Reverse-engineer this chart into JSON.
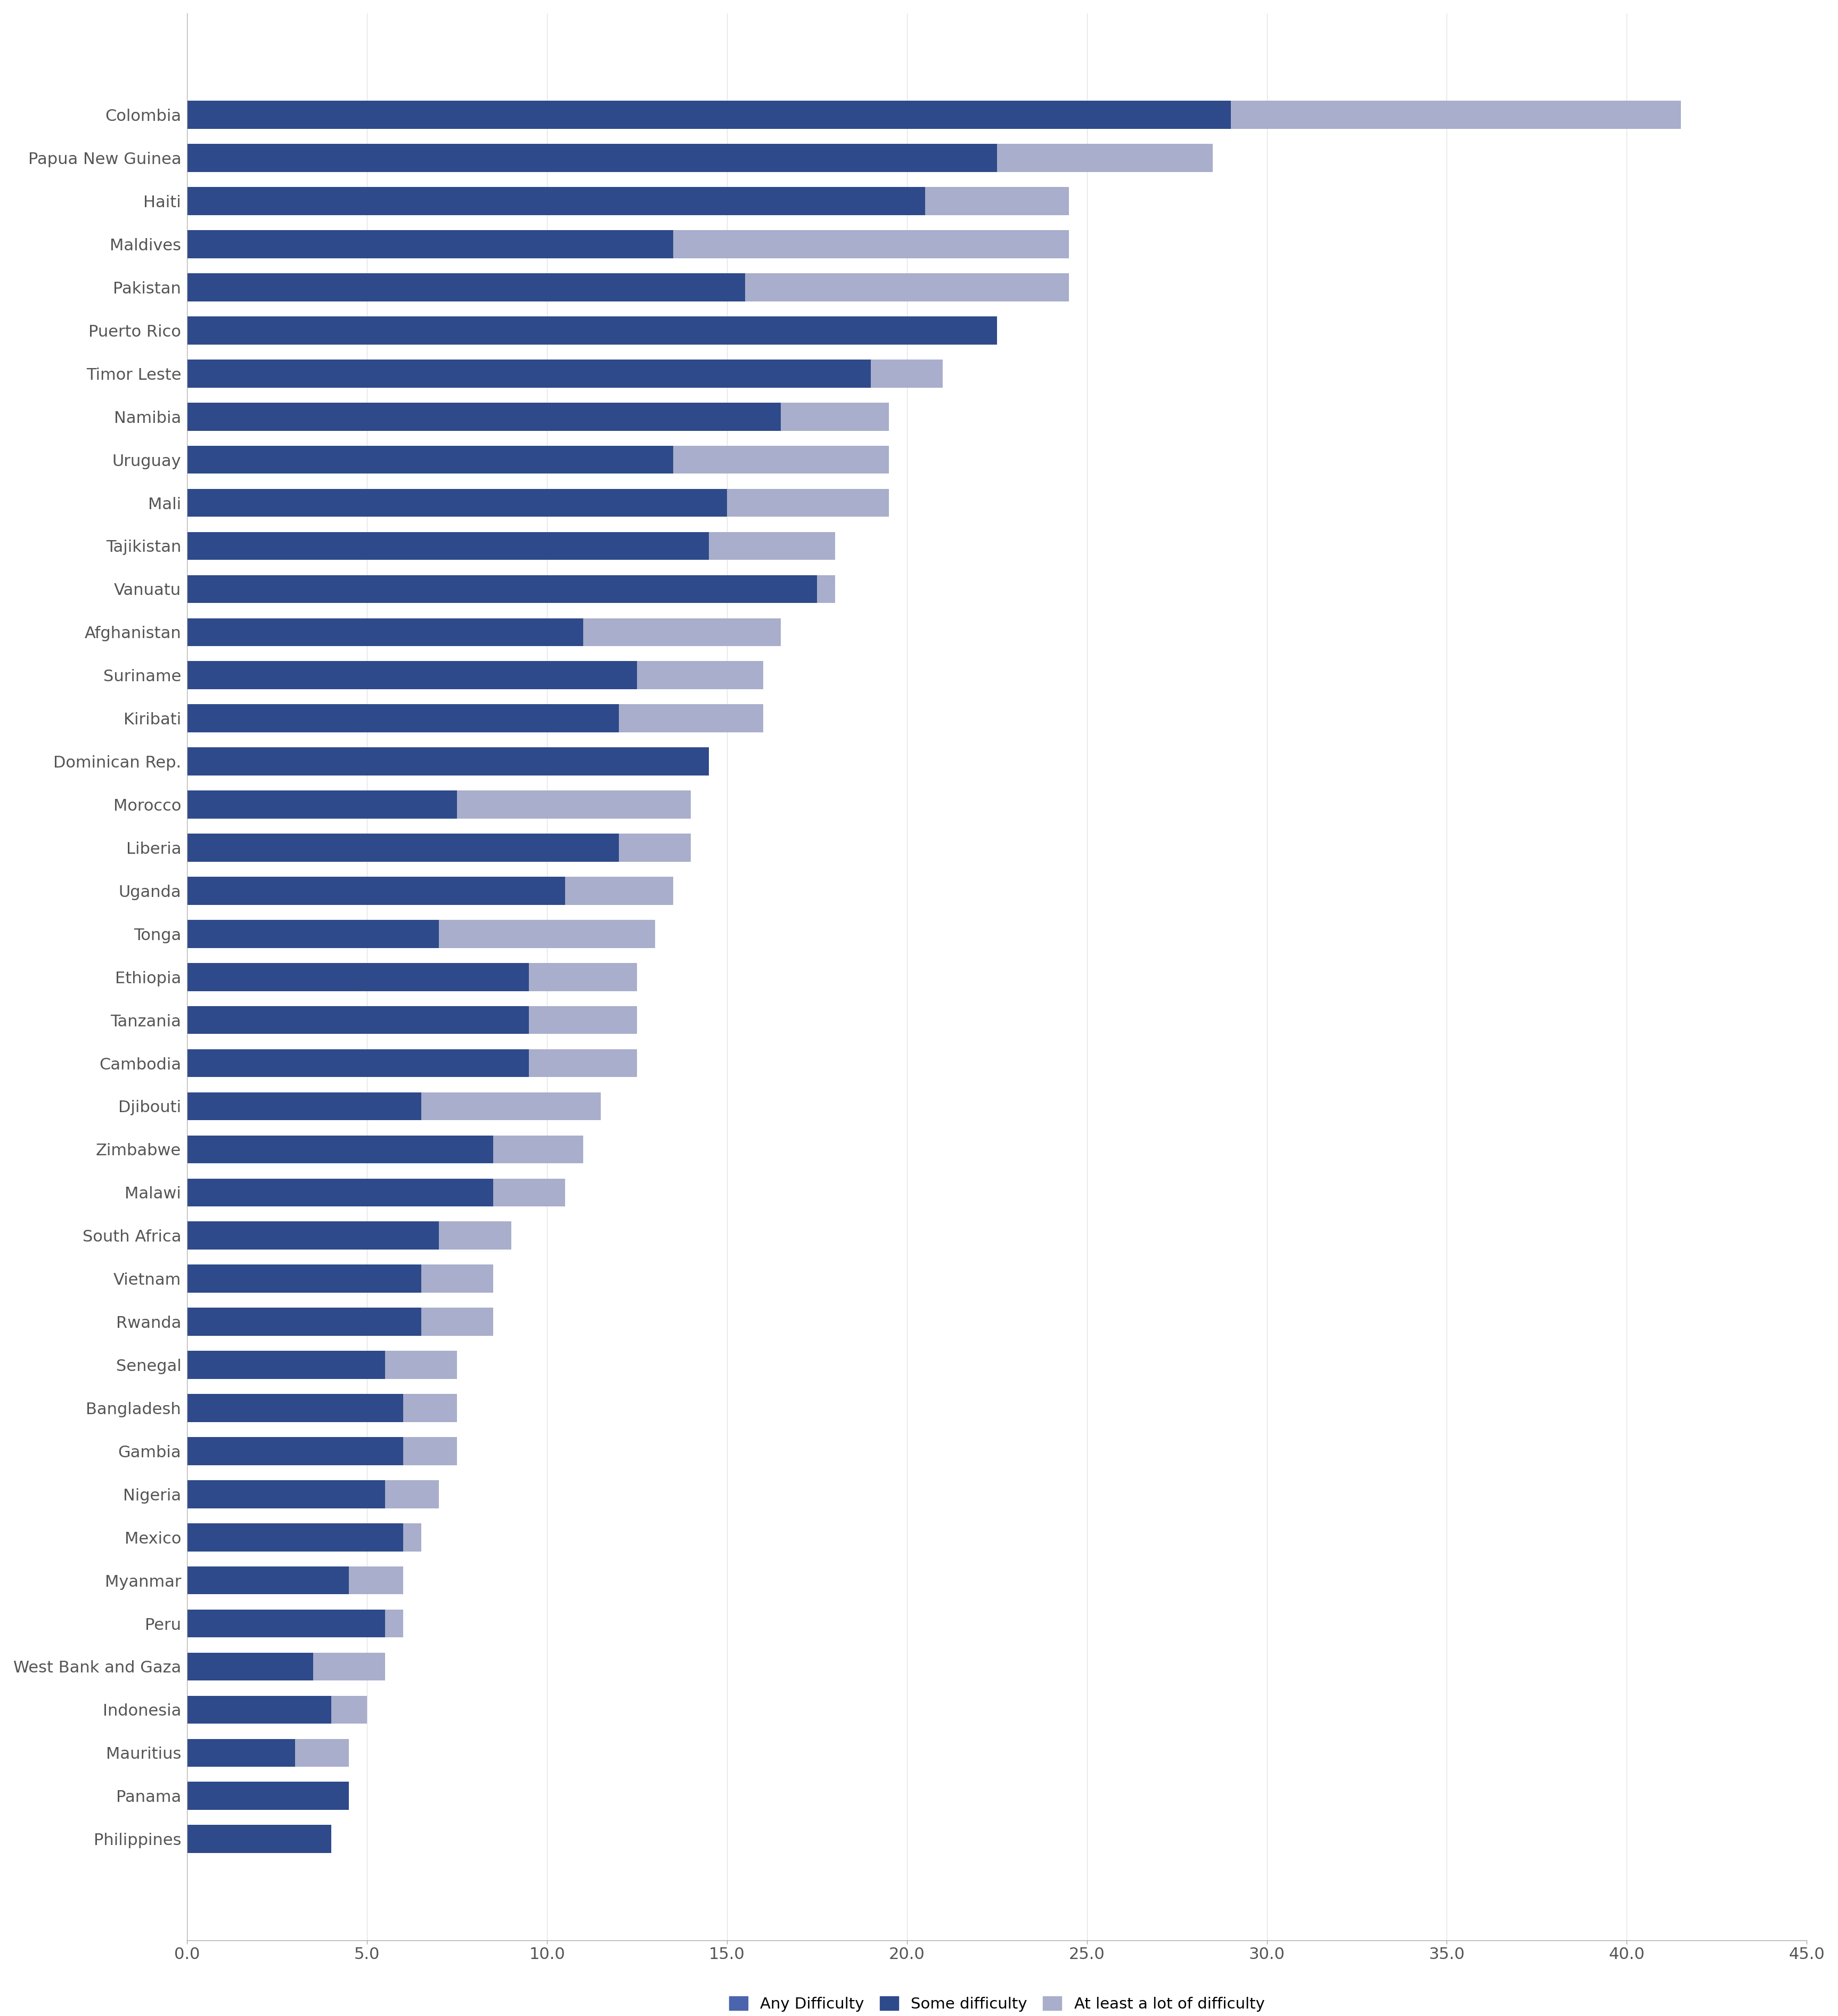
{
  "countries": [
    "Colombia",
    "Papua New Guinea",
    "Haiti",
    "Maldives",
    "Pakistan",
    "Puerto Rico",
    "Timor Leste",
    "Namibia",
    "Uruguay",
    "Mali",
    "Tajikistan",
    "Vanuatu",
    "Afghanistan",
    "Suriname",
    "Kiribati",
    "Dominican Rep.",
    "Morocco",
    "Liberia",
    "Uganda",
    "Tonga",
    "Ethiopia",
    "Tanzania",
    "Cambodia",
    "Djibouti",
    "Zimbabwe",
    "Malawi",
    "South Africa",
    "Vietnam",
    "Rwanda",
    "Senegal",
    "Bangladesh",
    "Gambia",
    "Nigeria",
    "Mexico",
    "Myanmar",
    "Peru",
    "West Bank and Gaza",
    "Indonesia",
    "Mauritius",
    "Panama",
    "Philippines"
  ],
  "any_difficulty": [
    41.5,
    28.5,
    24.5,
    24.5,
    24.5,
    22.5,
    21.0,
    19.5,
    19.5,
    19.5,
    18.0,
    18.0,
    16.5,
    16.0,
    16.0,
    14.5,
    14.0,
    14.0,
    13.5,
    13.0,
    12.5,
    12.5,
    12.5,
    11.5,
    11.0,
    10.5,
    9.0,
    8.5,
    8.5,
    7.5,
    7.5,
    7.5,
    7.0,
    6.5,
    6.0,
    6.0,
    5.5,
    5.0,
    4.5,
    4.5,
    4.0
  ],
  "some_difficulty": [
    29.0,
    22.5,
    20.5,
    13.5,
    15.5,
    22.5,
    19.0,
    16.5,
    13.5,
    15.0,
    14.5,
    17.5,
    11.0,
    12.5,
    12.0,
    14.5,
    7.5,
    12.0,
    10.5,
    7.0,
    9.5,
    9.5,
    9.5,
    6.5,
    8.5,
    8.5,
    7.0,
    6.5,
    6.5,
    5.5,
    6.0,
    6.0,
    5.5,
    6.0,
    4.5,
    5.5,
    3.5,
    4.0,
    3.0,
    4.5,
    4.0
  ],
  "lot_difficulty": [
    12.5,
    6.0,
    4.0,
    11.0,
    9.0,
    0.0,
    2.0,
    3.0,
    6.0,
    4.5,
    3.5,
    0.5,
    5.5,
    3.5,
    4.0,
    0.0,
    6.5,
    2.0,
    3.0,
    6.0,
    3.0,
    3.0,
    3.0,
    5.0,
    2.5,
    2.0,
    2.0,
    2.0,
    2.0,
    2.0,
    1.5,
    1.5,
    1.5,
    0.5,
    1.5,
    0.5,
    2.0,
    1.0,
    1.5,
    0.0,
    0.0
  ],
  "color_any": "#4B64AD",
  "color_some": "#2E4A8A",
  "color_lot": "#A8AECB",
  "xlim": [
    0,
    45
  ],
  "xticks": [
    0.0,
    5.0,
    10.0,
    15.0,
    20.0,
    25.0,
    30.0,
    35.0,
    40.0,
    45.0
  ],
  "legend_labels": [
    "Any Difficulty",
    "Some difficulty",
    "At least a lot of difficulty"
  ],
  "legend_colors": [
    "#4B64AD",
    "#2E4A8A",
    "#A8AECB"
  ]
}
